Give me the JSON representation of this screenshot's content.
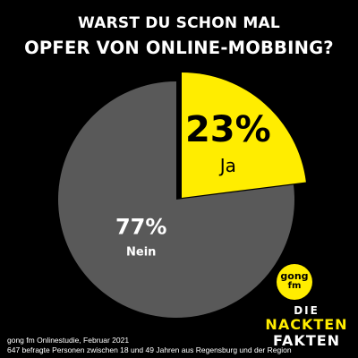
{
  "title": {
    "line1": "WARST DU SCHON MAL",
    "line2": "OPFER VON ONLINE-MOBBING?"
  },
  "chart_data": {
    "type": "pie",
    "title": "WARST DU SCHON MAL OPFER VON ONLINE-MOBBING?",
    "slices": [
      {
        "label": "Ja",
        "value": 23,
        "display": "23%",
        "color": "#ffed00",
        "text_color": "#000000",
        "exploded": true
      },
      {
        "label": "Nein",
        "value": 77,
        "display": "77%",
        "color": "#595959",
        "text_color": "#ffffff",
        "exploded": false
      }
    ],
    "start": "12 o'clock, clockwise",
    "legend": "none"
  },
  "footer": {
    "line1": "gong fm Onlinestudie, Februar 2021",
    "line2": "647 befragte Personen zwischen 18 und 49 Jahren aus Regensburg und der Region"
  },
  "logo": {
    "gong_line1": "gong",
    "gong_line2": "fm",
    "nf_line1": "DIE",
    "nf_line2": "NACKTEN",
    "nf_line3": "FAKTEN"
  },
  "colors": {
    "background": "#000000",
    "accent": "#ffed00",
    "pie_gray": "#595959"
  }
}
